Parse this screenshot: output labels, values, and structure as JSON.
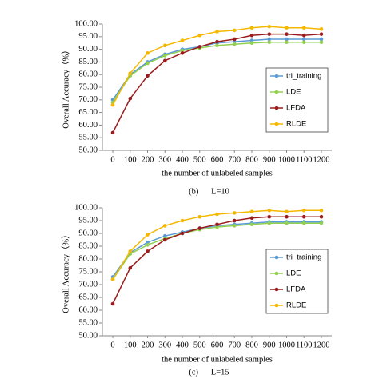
{
  "chart_data": [
    {
      "type": "line",
      "caption": "(b)      L=10",
      "xlabel": "the number of unlabeled samples",
      "ylabel": "Overall Accuracy（%）",
      "x": [
        0,
        100,
        200,
        300,
        400,
        500,
        600,
        700,
        800,
        900,
        1000,
        1100,
        1200
      ],
      "xlim": [
        0,
        1200
      ],
      "xticks": [
        0,
        100,
        200,
        300,
        400,
        500,
        600,
        700,
        800,
        900,
        1000,
        1100,
        1200
      ],
      "ylim": [
        50,
        100
      ],
      "yticks": [
        {
          "value": 50,
          "label": "50.00"
        },
        {
          "value": 55,
          "label": "55.00"
        },
        {
          "value": 60,
          "label": "60.00"
        },
        {
          "value": 65,
          "label": "65.00"
        },
        {
          "value": 70,
          "label": "70.00"
        },
        {
          "value": 75,
          "label": "75.00"
        },
        {
          "value": 80,
          "label": "80.00"
        },
        {
          "value": 85,
          "label": "85.00"
        },
        {
          "value": 90,
          "label": "90.00"
        },
        {
          "value": 95,
          "label": "95.00"
        },
        {
          "value": 100,
          "label": "100.00"
        }
      ],
      "legend": "right",
      "series": [
        {
          "name": "tri_training",
          "color": "#5b9bd5",
          "values": [
            70,
            80,
            85,
            88,
            90,
            91,
            92.5,
            93,
            93.5,
            94,
            94,
            94,
            94
          ]
        },
        {
          "name": "LDE",
          "color": "#92d050",
          "values": [
            69,
            79.5,
            84.5,
            87.5,
            89.5,
            90.5,
            91.5,
            92,
            92.5,
            92.8,
            92.8,
            92.8,
            92.8
          ]
        },
        {
          "name": "LFDA",
          "color": "#9b1c1c",
          "values": [
            57,
            70.5,
            79.5,
            85.5,
            88.5,
            91,
            93,
            94,
            95.5,
            96,
            96,
            95.5,
            96
          ]
        },
        {
          "name": "RLDE",
          "color": "#f5b800",
          "values": [
            68,
            80.5,
            88.5,
            91.5,
            93.5,
            95.5,
            97,
            97.5,
            98.5,
            99,
            98.5,
            98.5,
            98
          ]
        }
      ]
    },
    {
      "type": "line",
      "caption": "(c)      L=15",
      "xlabel": "the number of unlabeled samples",
      "ylabel": "Overall Accuracy（%）",
      "x": [
        0,
        100,
        200,
        300,
        400,
        500,
        600,
        700,
        800,
        900,
        1000,
        1100,
        1200
      ],
      "xlim": [
        0,
        1200
      ],
      "xticks": [
        0,
        100,
        200,
        300,
        400,
        500,
        600,
        700,
        800,
        900,
        1000,
        1100,
        1200
      ],
      "ylim": [
        50,
        100
      ],
      "yticks": [
        {
          "value": 50,
          "label": "50.00"
        },
        {
          "value": 55,
          "label": "55.00"
        },
        {
          "value": 60,
          "label": "60.00"
        },
        {
          "value": 65,
          "label": "65.00"
        },
        {
          "value": 70,
          "label": "70.00"
        },
        {
          "value": 75,
          "label": "75.00"
        },
        {
          "value": 80,
          "label": "80.00"
        },
        {
          "value": 85,
          "label": "85.00"
        },
        {
          "value": 90,
          "label": "90.00"
        },
        {
          "value": 95,
          "label": "95.00"
        },
        {
          "value": 100,
          "label": "100.00"
        }
      ],
      "legend": "right",
      "series": [
        {
          "name": "tri_training",
          "color": "#5b9bd5",
          "values": [
            73,
            82.5,
            86.5,
            89,
            90.5,
            92,
            93,
            93.5,
            94,
            94.5,
            94.5,
            94.5,
            94.5
          ]
        },
        {
          "name": "LDE",
          "color": "#92d050",
          "values": [
            72,
            82,
            85.5,
            88,
            90,
            91.5,
            92.5,
            93,
            93.5,
            94,
            94,
            94,
            94
          ]
        },
        {
          "name": "LFDA",
          "color": "#9b1c1c",
          "values": [
            62.5,
            76.5,
            83,
            87.5,
            90,
            92,
            93.5,
            95,
            96,
            96.5,
            96.5,
            96.5,
            96.5
          ]
        },
        {
          "name": "RLDE",
          "color": "#f5b800",
          "values": [
            72,
            83,
            89.5,
            93,
            95,
            96.5,
            97.5,
            98,
            98.5,
            99,
            98.5,
            99,
            99
          ]
        }
      ]
    }
  ]
}
